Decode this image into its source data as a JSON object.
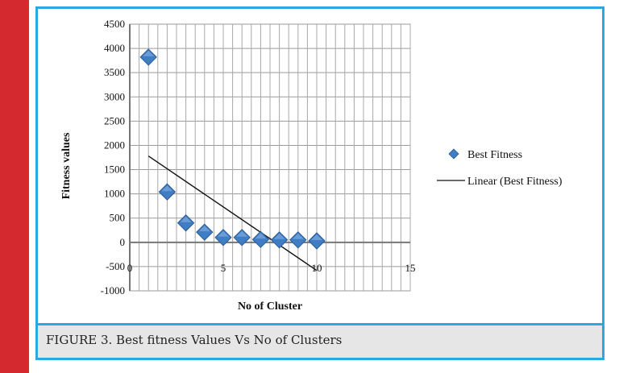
{
  "caption": "FIGURE 3. Best fitness Values Vs No of Clusters",
  "chart_data": {
    "type": "scatter",
    "xlabel": "No of Cluster",
    "ylabel": "Fitness values",
    "xlim": [
      0,
      15
    ],
    "ylim": [
      -1000,
      4500
    ],
    "x_ticks": [
      0,
      5,
      10,
      15
    ],
    "y_ticks": [
      4500,
      4000,
      3500,
      3000,
      2500,
      2000,
      1500,
      1000,
      500,
      0,
      -500,
      -1000
    ],
    "grid": true,
    "legend_position": "right",
    "series": [
      {
        "name": "Best Fitness",
        "marker": "diamond",
        "color": "#3f7dc4",
        "x": [
          1,
          2,
          3,
          4,
          5,
          6,
          7,
          8,
          9,
          10
        ],
        "y": [
          3820,
          1040,
          400,
          210,
          100,
          100,
          60,
          50,
          50,
          30
        ]
      }
    ],
    "trendline": {
      "name": "Linear (Best Fitness)",
      "color": "#111111",
      "x": [
        1,
        10
      ],
      "y": [
        1780,
        -580
      ]
    }
  }
}
